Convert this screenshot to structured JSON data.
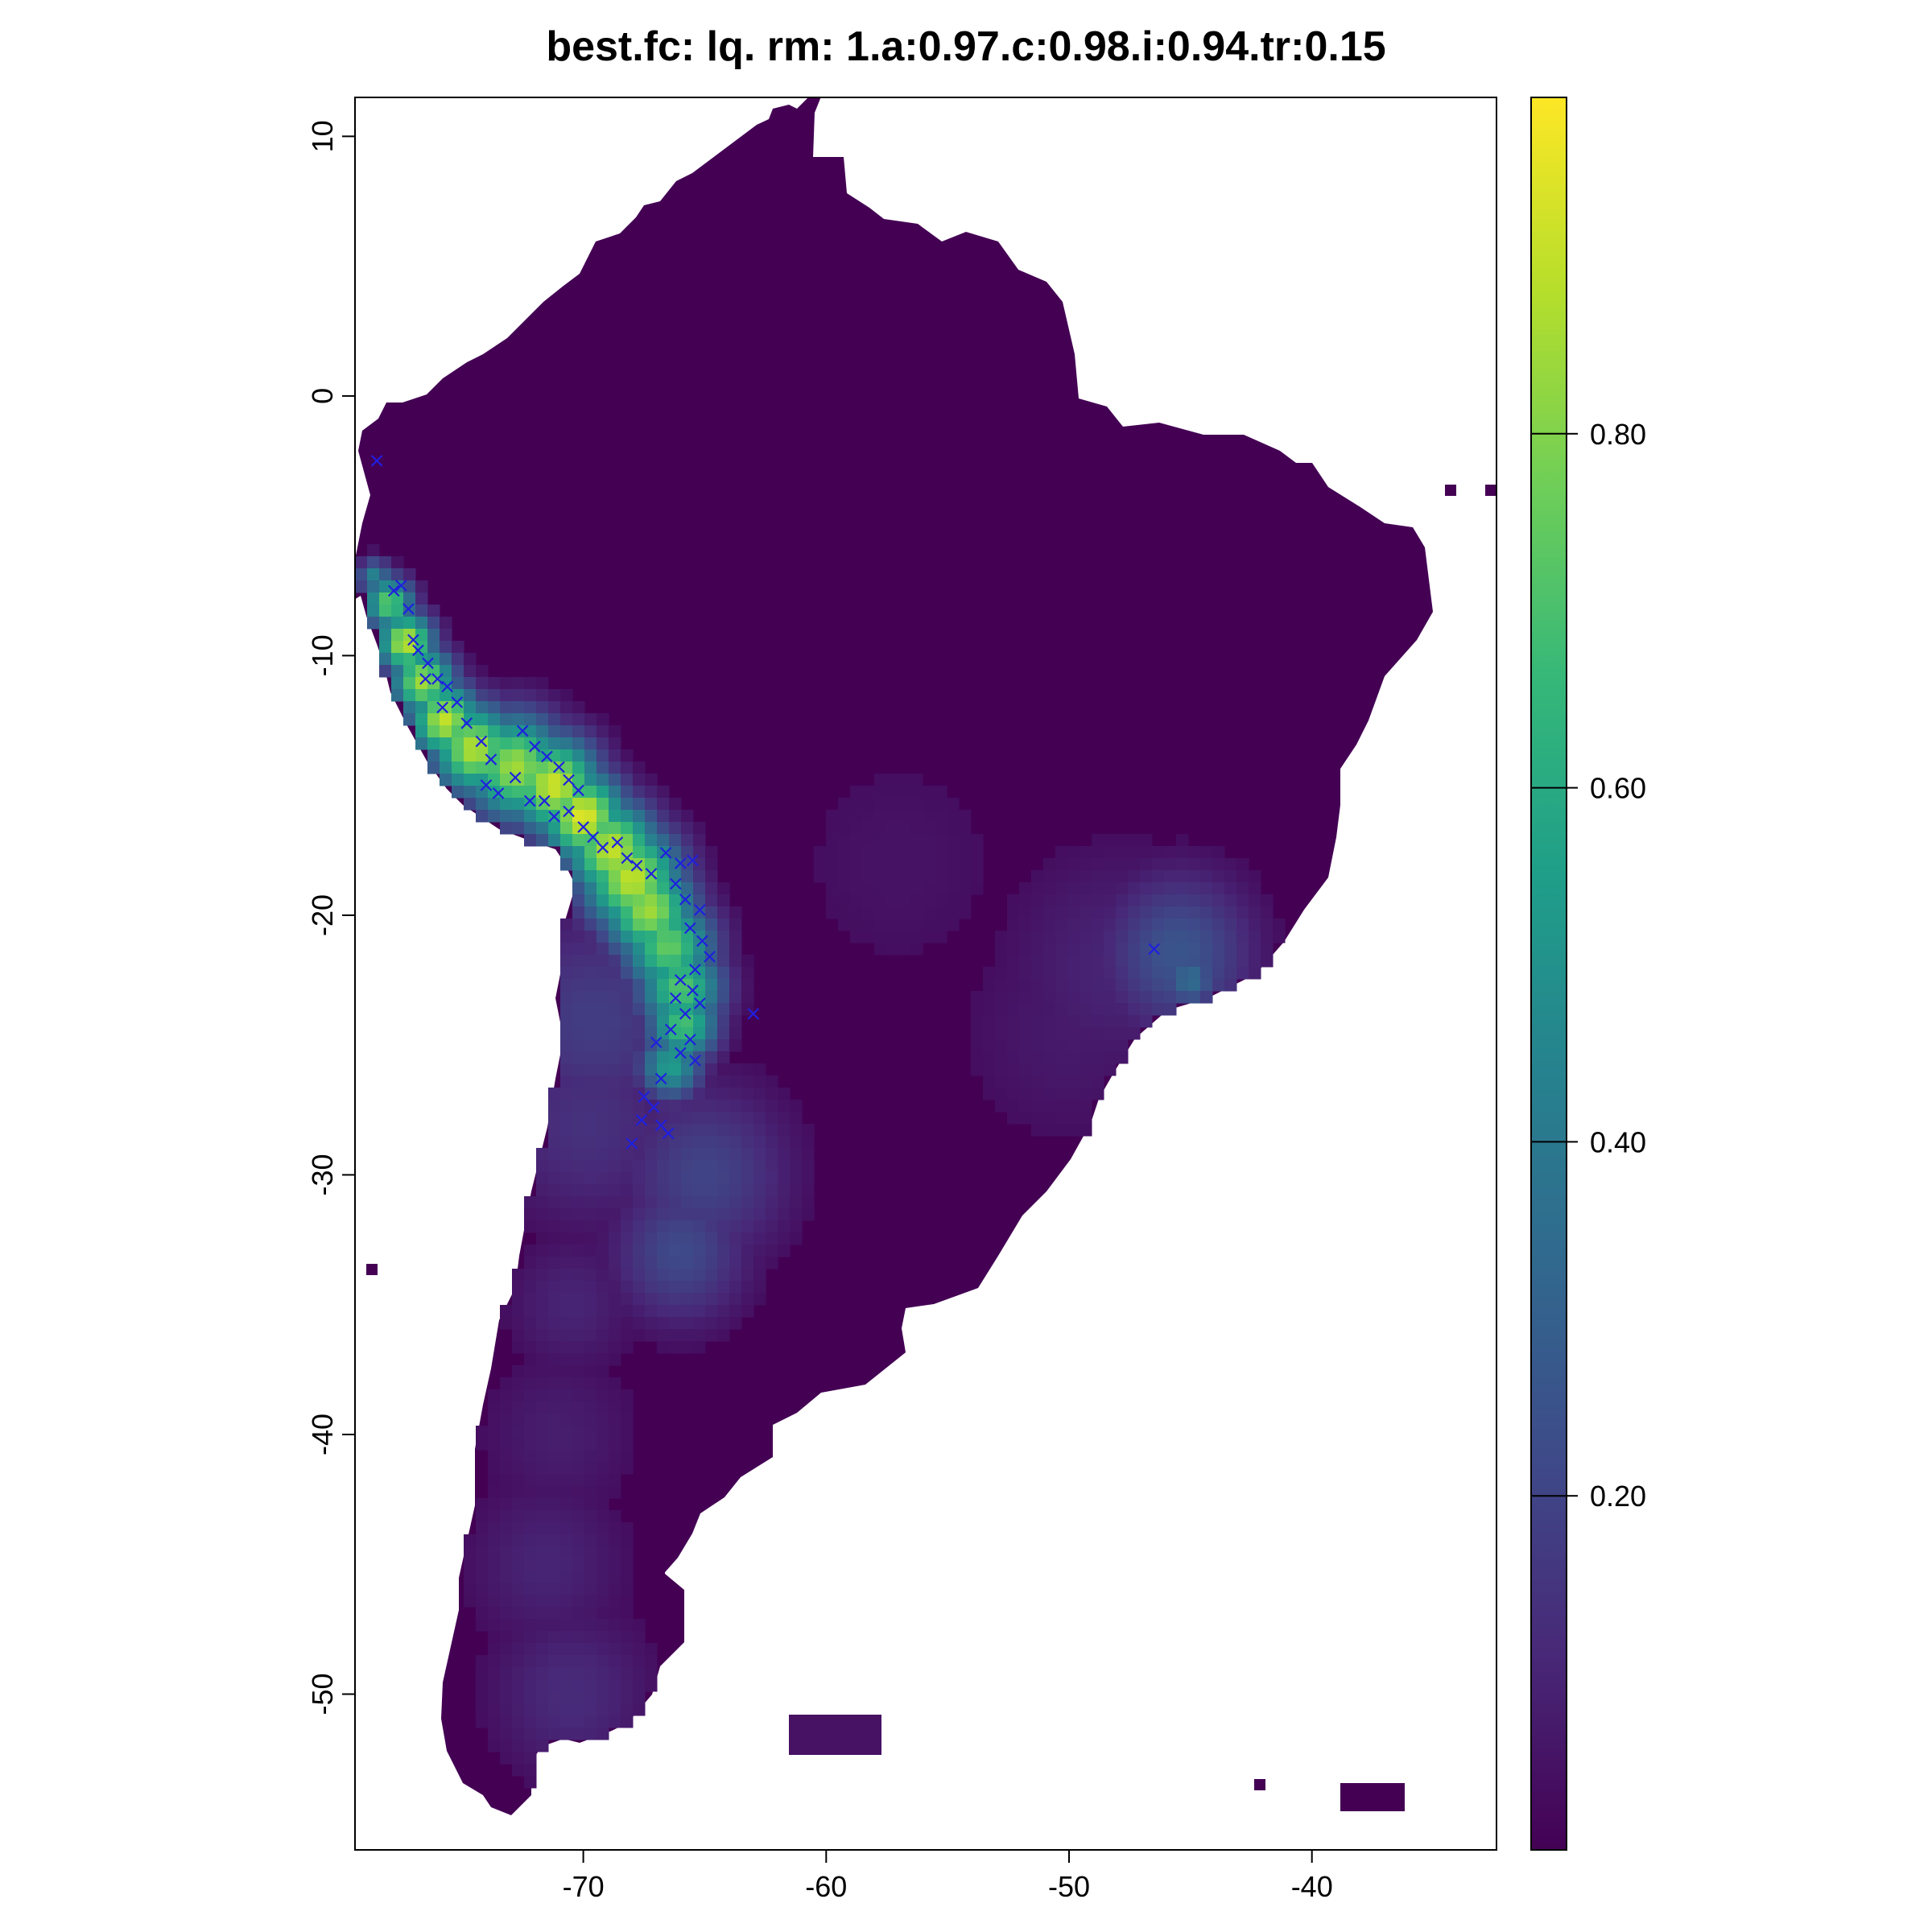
{
  "title": "best.fc: lq. rm: 1.a:0.97.c:0.98.i:0.94.tr:0.15",
  "map": {
    "x_ticks": [
      "-70",
      "-60",
      "-50",
      "-40"
    ],
    "x_tick_values": [
      -70,
      -60,
      -50,
      -40
    ],
    "y_ticks": [
      "10",
      "0",
      "-10",
      "-20",
      "-30",
      "-40",
      "-50"
    ],
    "y_tick_values": [
      10,
      0,
      -10,
      -20,
      -30,
      -40,
      -50
    ],
    "xlim": [
      -79.4,
      -32.4
    ],
    "ylim": [
      -56.0,
      11.5
    ],
    "marker_color": "#1f1fe0",
    "marker_symbol": "×"
  },
  "legend": {
    "ticks": [
      "0.20",
      "0.40",
      "0.60",
      "0.80"
    ],
    "tick_values": [
      0.2,
      0.4,
      0.6,
      0.8
    ],
    "range": [
      0.0,
      0.99
    ],
    "palette": [
      "#440154",
      "#482878",
      "#3e4a89",
      "#31688e",
      "#26828e",
      "#1f9e89",
      "#35b779",
      "#6ece58",
      "#b5de2b",
      "#fde725"
    ]
  }
}
